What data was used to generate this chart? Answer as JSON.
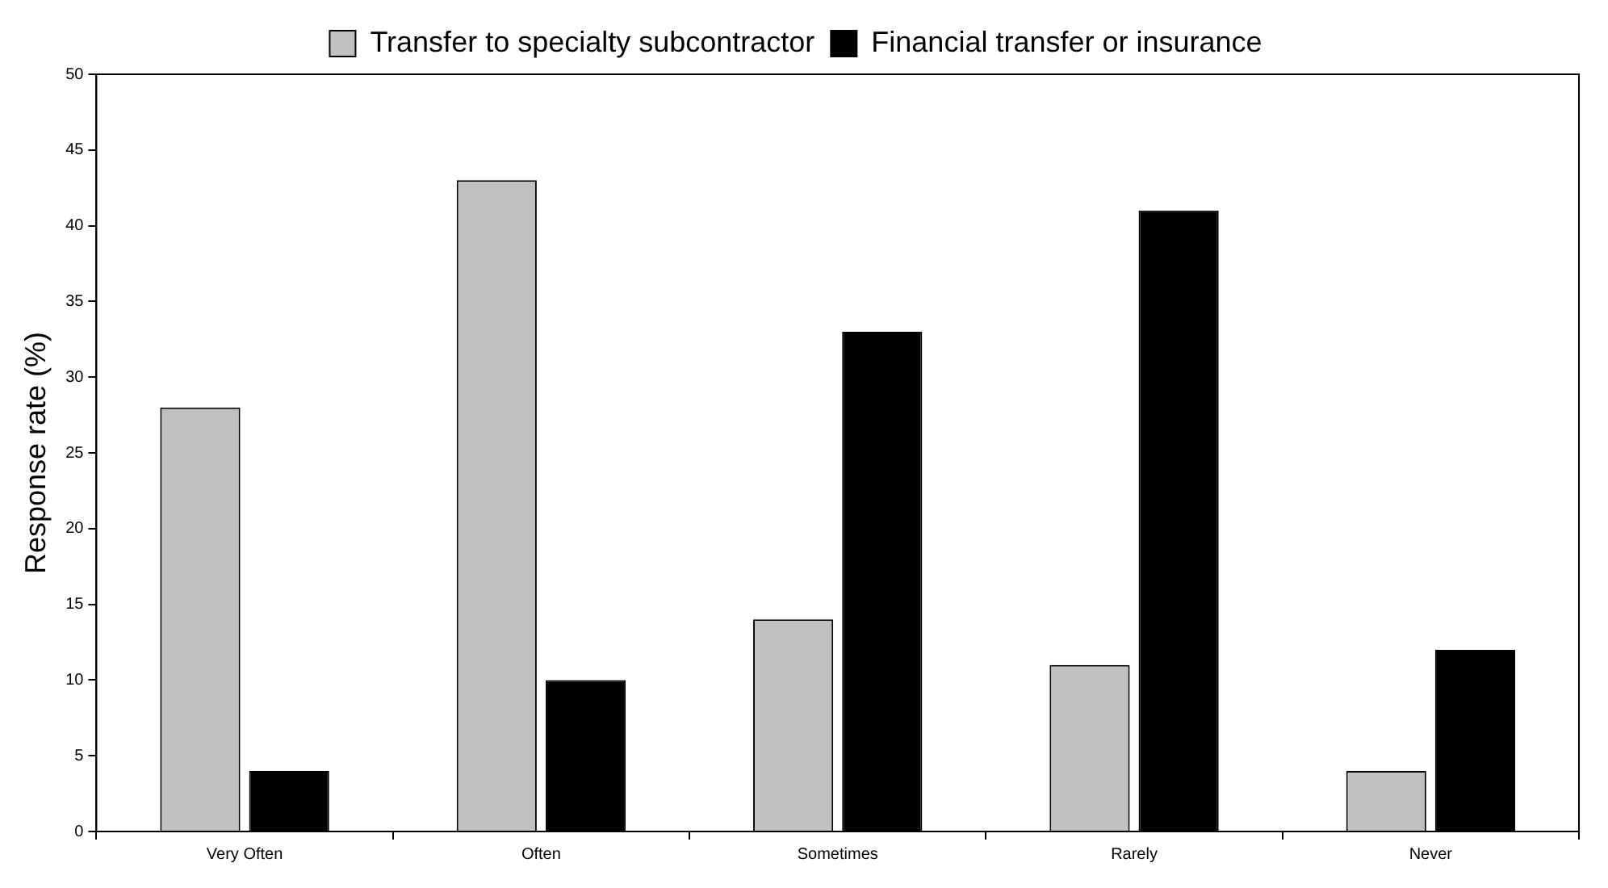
{
  "chart_data": {
    "type": "bar",
    "ylabel": "Response rate (%)",
    "categories": [
      "Very Often",
      "Often",
      "Sometimes",
      "Rarely",
      "Never"
    ],
    "series": [
      {
        "name": "Transfer to specialty subcontractor",
        "color": "#c0c0c0",
        "values": [
          28,
          43,
          14,
          11,
          4
        ]
      },
      {
        "name": "Financial transfer or insurance",
        "color": "#000000",
        "values": [
          4,
          10,
          33,
          41,
          12
        ]
      }
    ],
    "ylim": [
      0,
      50
    ],
    "yticks": [
      0,
      5,
      10,
      15,
      20,
      25,
      30,
      35,
      40,
      45,
      50
    ],
    "grid": false,
    "legend": "top"
  }
}
